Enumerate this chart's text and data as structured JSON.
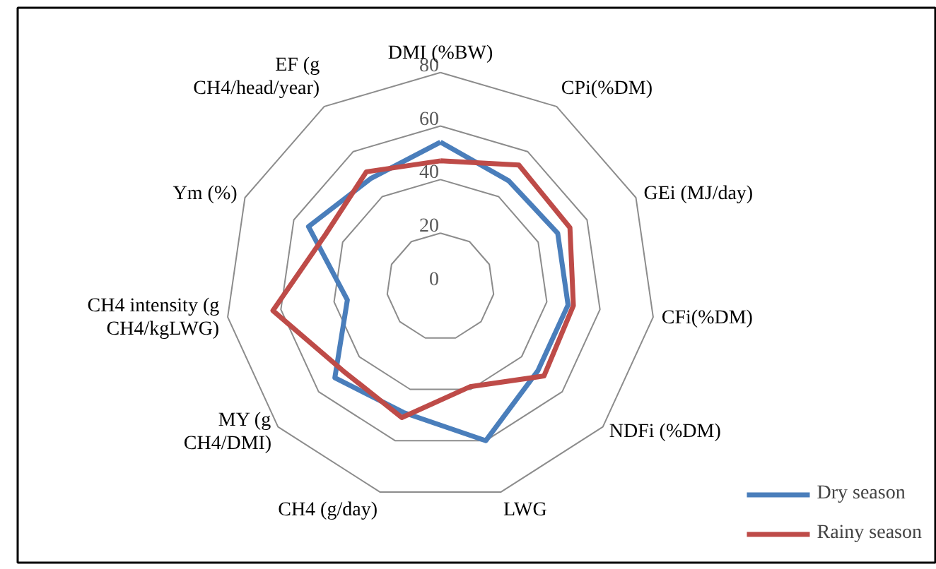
{
  "chart_data": {
    "type": "radar",
    "categories": [
      "DMI (%BW)",
      "CPi(%DM)",
      "GEi (MJ/day)",
      "CFi(%DM)",
      "NDFi (%DM)",
      "LWG",
      "CH4 (g/day)",
      "MY (g CH4/DMI)",
      "CH4 intensity (g CH4/kgLWG)",
      "Ym (%)",
      "EF (g CH4/head/year)"
    ],
    "series": [
      {
        "name": "Dry season",
        "color": "#4a7ebb",
        "values": [
          54,
          47,
          48,
          48,
          48,
          60,
          49,
          52,
          35,
          54,
          48
        ]
      },
      {
        "name": "Rainy season",
        "color": "#be4b48",
        "values": [
          47,
          54,
          53,
          50,
          51,
          39,
          51,
          48,
          63,
          47,
          51
        ]
      }
    ],
    "ylim": [
      0,
      80
    ],
    "yticks": [
      0,
      20,
      40,
      60,
      80
    ],
    "grid": true,
    "legend": "bottom right",
    "marker": "none",
    "line_style": "solid"
  }
}
